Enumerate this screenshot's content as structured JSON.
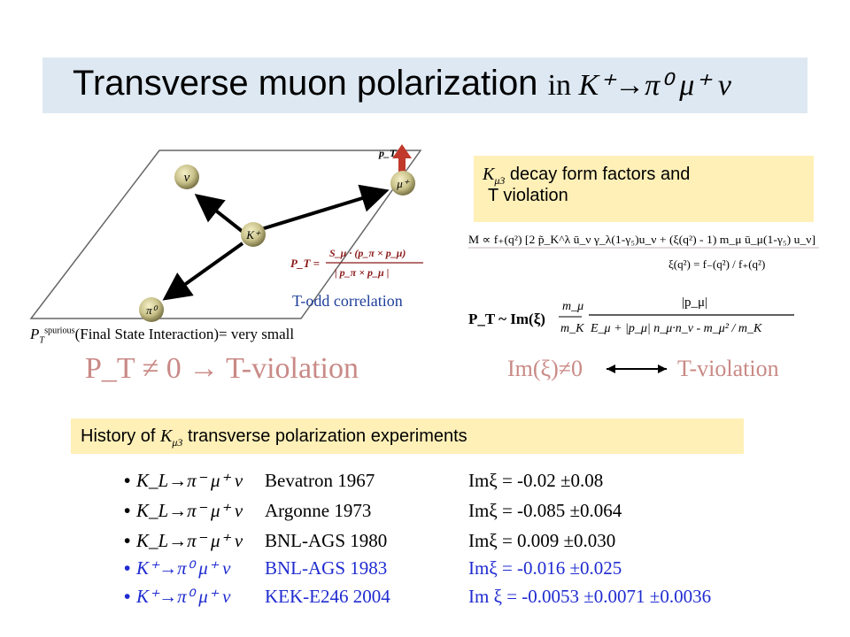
{
  "slide": {
    "title_main": "Transverse muon polarization",
    "title_suffix": "in",
    "title_process": "K⁺→π⁰ μ⁺ ν"
  },
  "diagram": {
    "particles": {
      "nu": "ν",
      "mu": "μ⁺",
      "kaon": "K⁺",
      "pion": "π⁰"
    },
    "pt_label": "p_T",
    "formula_lhs": "P_T =",
    "formula_numerator": "S_μ · (p_π × p_μ)",
    "formula_denominator": "| p_π × p_μ |",
    "t_odd_caption": "T-odd correlation",
    "spurious_prefix": "P",
    "spurious_sub": "T",
    "spurious_sup": "spurious",
    "spurious_text": "(Final State Interaction)= very small",
    "violation_statement": "P_T ≠ 0 → T-violation"
  },
  "form_factor_box": {
    "symbol": "K",
    "symbol_sub": "μ3",
    "line1_rest": " decay form factors and",
    "line2": "T violation"
  },
  "equations": {
    "matrix_element": "M ∝ f₊(q²) [2 p̃_K^λ ū_ν γ_λ(1-γ₅)u_ν + (ξ(q²) - 1) m_μ ū_μ(1-γ₅) u_ν]",
    "xi_def": "ξ(q²) = f₋(q²) / f₊(q²)",
    "pt_lhs": "P_T ~ Im(ξ)",
    "pt_frac1_num": "m_μ",
    "pt_frac1_den": "m_K",
    "pt_frac2_num": "|p_μ|",
    "pt_frac2_den": "E_μ + |p_μ| n_μ·n_ν - m_μ² / m_K",
    "im_relation_lhs": "Im(ξ)≠0",
    "im_relation_rhs": "T-violation"
  },
  "history": {
    "header_prefix": "History of",
    "header_symbol": "K",
    "header_sub": "μ3",
    "header_suffix": " transverse polarization experiments",
    "experiments": [
      {
        "process": "K_L→π⁻ μ⁺ ν",
        "lab": "Bevatron   1967",
        "result": "Imξ = -0.02 ±0.08",
        "color": "#000000"
      },
      {
        "process": "K_L→π⁻ μ⁺ ν",
        "lab": "Argonne   1973",
        "result": "Imξ = -0.085 ±0.064",
        "color": "#000000"
      },
      {
        "process": "K_L→π⁻ μ⁺ ν",
        "lab": "BNL-AGS  1980",
        "result": "Imξ =  0.009 ±0.030",
        "color": "#000000"
      },
      {
        "process": "K⁺→π⁰ μ⁺ ν",
        "lab": "BNL-AGS  1983",
        "result": "Imξ = -0.016 ±0.025",
        "color": "#1f2bd0"
      },
      {
        "process": "K⁺→π⁰ μ⁺ ν",
        "lab": "KEK-E246  2004",
        "result": "Im ξ = -0.0053 ±0.0071 ±0.0036",
        "color": "#1f2bd0"
      }
    ]
  },
  "colors": {
    "title_band": "#dde8f2",
    "highlight_box": "#fff0b8",
    "t_odd_text": "#1f3f9a",
    "violation_text": "#c98a86",
    "pt_arrow": "#c0392b",
    "recent_experiments": "#1f2bd0"
  }
}
